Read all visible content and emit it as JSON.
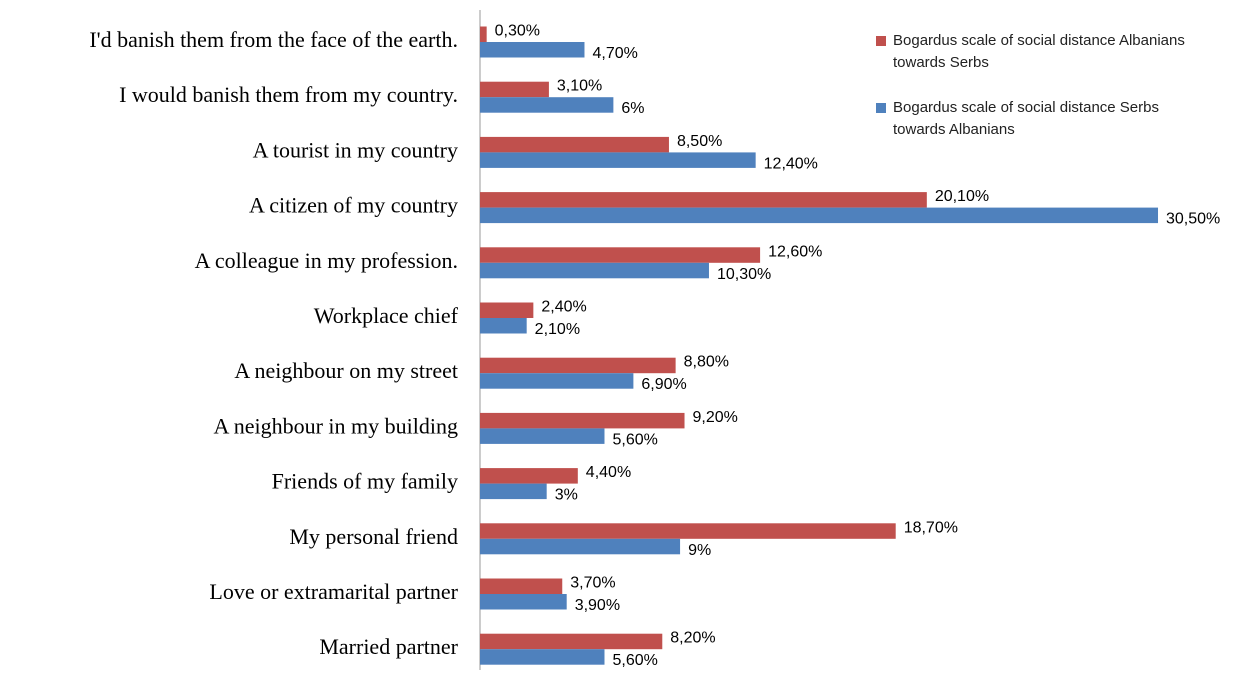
{
  "chart_data": {
    "type": "bar",
    "orientation": "horizontal",
    "categories": [
      "I'd banish them from the face of the earth.",
      "I would banish them from my country.",
      "A tourist in my country",
      "A citizen of my country",
      "A colleague in my profession.",
      "Workplace chief",
      "A neighbour on my street",
      "A neighbour in my building",
      "Friends of my family",
      "My personal friend",
      "Love or extramarital partner",
      "Married partner"
    ],
    "series": [
      {
        "name": "Bogardus scale of social distance Albanians towards Serbs",
        "color": "#c0504d",
        "values": [
          0.3,
          3.1,
          8.5,
          20.1,
          12.6,
          2.4,
          8.8,
          9.2,
          4.4,
          18.7,
          3.7,
          8.2
        ],
        "value_labels": [
          "0,30%",
          "3,10%",
          "8,50%",
          "20,10%",
          "12,60%",
          "2,40%",
          "8,80%",
          "9,20%",
          "4,40%",
          "18,70%",
          "3,70%",
          "8,20%"
        ]
      },
      {
        "name": "Bogardus scale of social distance Serbs towards Albanians",
        "color": "#4f81bd",
        "values": [
          4.7,
          6,
          12.4,
          30.5,
          10.3,
          2.1,
          6.9,
          5.6,
          3,
          9,
          3.9,
          5.6
        ],
        "value_labels": [
          "4,70%",
          "6%",
          "12,40%",
          "30,50%",
          "10,30%",
          "2,10%",
          "6,90%",
          "5,60%",
          "3%",
          "9%",
          "3,90%",
          "5,60%"
        ]
      }
    ],
    "legend": "top-right"
  }
}
